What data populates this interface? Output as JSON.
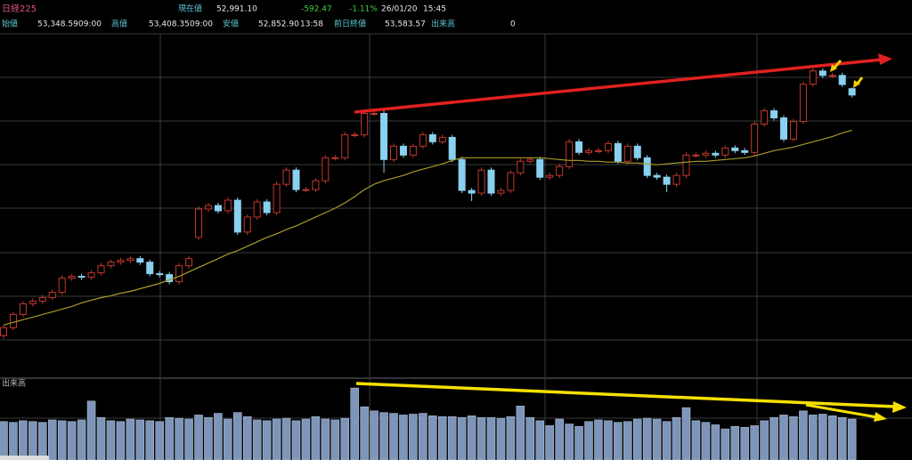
{
  "header": {
    "row1": [
      "日経225",
      "現在値",
      "52,991.10",
      "-592.47",
      "-1.11%",
      "26/01/20",
      "15:45"
    ],
    "row2": [
      "始値",
      "53,348.59",
      "09:00",
      "高値",
      "53,408.35",
      "09:00",
      "安値",
      "52,852.90",
      "13:58",
      "前日終値",
      "53,583.57",
      "出来高",
      "0"
    ]
  },
  "chart_data": {
    "type": "candlestick",
    "ylim": [
      37000,
      56600
    ],
    "up_color": "#c0392b",
    "down_color": "#8ad0ef",
    "ohlc": [
      [
        39400,
        40000,
        39250,
        39850
      ],
      [
        39850,
        40750,
        39700,
        40600
      ],
      [
        40600,
        41350,
        40450,
        41200
      ],
      [
        41200,
        41500,
        41050,
        41350
      ],
      [
        41350,
        41700,
        41200,
        41550
      ],
      [
        41550,
        42000,
        41400,
        41850
      ],
      [
        41850,
        42800,
        41700,
        42650
      ],
      [
        42650,
        42900,
        42500,
        42750
      ],
      [
        42750,
        42900,
        42550,
        42700
      ],
      [
        42700,
        43100,
        42550,
        42950
      ],
      [
        42950,
        43500,
        42800,
        43350
      ],
      [
        43350,
        43700,
        43200,
        43550
      ],
      [
        43550,
        43800,
        43400,
        43650
      ],
      [
        43650,
        43900,
        43500,
        43750
      ],
      [
        43750,
        43900,
        43400,
        43550
      ],
      [
        43550,
        43700,
        42750,
        42900
      ],
      [
        42900,
        43050,
        42700,
        42850
      ],
      [
        42850,
        43000,
        42300,
        42450
      ],
      [
        42450,
        43500,
        42300,
        43350
      ],
      [
        43350,
        43900,
        43200,
        43750
      ],
      [
        44950,
        46700,
        44800,
        46550
      ],
      [
        46550,
        46900,
        46400,
        46750
      ],
      [
        46750,
        46900,
        46300,
        46450
      ],
      [
        46450,
        47200,
        46300,
        47050
      ],
      [
        47050,
        47200,
        45100,
        45250
      ],
      [
        45250,
        46250,
        45100,
        46100
      ],
      [
        46100,
        47100,
        45950,
        46950
      ],
      [
        46950,
        47100,
        46200,
        46350
      ],
      [
        46350,
        48100,
        46200,
        47950
      ],
      [
        47950,
        48900,
        47800,
        48750
      ],
      [
        48750,
        48900,
        47500,
        47650
      ],
      [
        47650,
        47800,
        47500,
        47650
      ],
      [
        47650,
        48300,
        47500,
        48150
      ],
      [
        48150,
        49600,
        48000,
        49450
      ],
      [
        49450,
        49600,
        49300,
        49450
      ],
      [
        49450,
        50900,
        49300,
        50750
      ],
      [
        50750,
        50900,
        50600,
        50750
      ],
      [
        50750,
        52100,
        50600,
        51950
      ],
      [
        51950,
        52100,
        51800,
        51950
      ],
      [
        51950,
        52100,
        48600,
        49350
      ],
      [
        49350,
        50250,
        49200,
        50100
      ],
      [
        50100,
        50250,
        49450,
        49600
      ],
      [
        49600,
        50250,
        49450,
        50100
      ],
      [
        50100,
        50900,
        49950,
        50750
      ],
      [
        50750,
        50900,
        50200,
        50350
      ],
      [
        50350,
        50750,
        50200,
        50600
      ],
      [
        50600,
        50750,
        49200,
        49350
      ],
      [
        49350,
        49500,
        47450,
        47600
      ],
      [
        47600,
        47750,
        47000,
        47450
      ],
      [
        47450,
        48900,
        47300,
        48750
      ],
      [
        48750,
        48900,
        47300,
        47450
      ],
      [
        47450,
        47750,
        47300,
        47600
      ],
      [
        47600,
        48750,
        47450,
        48600
      ],
      [
        48600,
        49400,
        48450,
        49250
      ],
      [
        49250,
        49500,
        49100,
        49350
      ],
      [
        49350,
        49500,
        48200,
        48350
      ],
      [
        48350,
        48600,
        48200,
        48450
      ],
      [
        48450,
        49100,
        48300,
        48950
      ],
      [
        48950,
        50500,
        48800,
        50350
      ],
      [
        50350,
        50500,
        49600,
        49750
      ],
      [
        49750,
        50000,
        49600,
        49850
      ],
      [
        49850,
        50000,
        49700,
        49850
      ],
      [
        49850,
        50400,
        49700,
        50250
      ],
      [
        50250,
        50400,
        49100,
        49250
      ],
      [
        49250,
        50250,
        49100,
        50100
      ],
      [
        50100,
        50250,
        49300,
        49450
      ],
      [
        49450,
        49600,
        48300,
        48450
      ],
      [
        48450,
        48600,
        48200,
        48350
      ],
      [
        48350,
        48500,
        47500,
        47950
      ],
      [
        47950,
        48600,
        47800,
        48450
      ],
      [
        48450,
        49750,
        48300,
        49600
      ],
      [
        49600,
        49750,
        49450,
        49600
      ],
      [
        49600,
        49850,
        49450,
        49700
      ],
      [
        49700,
        49850,
        49450,
        49600
      ],
      [
        49600,
        50150,
        49450,
        50000
      ],
      [
        50000,
        50150,
        49700,
        49850
      ],
      [
        49850,
        50000,
        49600,
        49750
      ],
      [
        49750,
        51500,
        49600,
        51350
      ],
      [
        51350,
        52250,
        51200,
        52100
      ],
      [
        52100,
        52250,
        51550,
        51700
      ],
      [
        51700,
        51850,
        50350,
        50500
      ],
      [
        50500,
        51650,
        50350,
        51500
      ],
      [
        51500,
        53750,
        51350,
        53600
      ],
      [
        53600,
        54500,
        53450,
        54350
      ],
      [
        54350,
        54500,
        53950,
        54100
      ],
      [
        54100,
        54250,
        53950,
        54100
      ],
      [
        54100,
        54250,
        53450,
        53583.57
      ],
      [
        53348.59,
        53408.35,
        52852.9,
        52991.1
      ]
    ],
    "ma": {
      "color": "#a89a2a",
      "values": [
        40000,
        40150,
        40300,
        40450,
        40600,
        40750,
        40900,
        41050,
        41250,
        41400,
        41550,
        41650,
        41800,
        41900,
        42050,
        42200,
        42350,
        42550,
        42750,
        43000,
        43250,
        43500,
        43750,
        44000,
        44200,
        44450,
        44700,
        44950,
        45150,
        45400,
        45600,
        45850,
        46100,
        46350,
        46600,
        46900,
        47250,
        47650,
        47950,
        48150,
        48300,
        48450,
        48650,
        48800,
        48950,
        49100,
        49300,
        49450,
        49450,
        49450,
        49450,
        49450,
        49450,
        49450,
        49450,
        49450,
        49400,
        49350,
        49300,
        49300,
        49250,
        49250,
        49200,
        49200,
        49150,
        49150,
        49100,
        49050,
        49100,
        49150,
        49200,
        49250,
        49250,
        49300,
        49350,
        49400,
        49450,
        49550,
        49700,
        49850,
        49950,
        50050,
        50200,
        50350,
        50500,
        50650,
        50850,
        51000
      ]
    },
    "volume": {
      "label": "出来高",
      "color": "#7d95b8",
      "ylim": [
        0,
        100
      ],
      "values": [
        47,
        46,
        48,
        47,
        46,
        49,
        48,
        47,
        49,
        72,
        52,
        48,
        47,
        50,
        49,
        48,
        47,
        52,
        51,
        50,
        55,
        52,
        57,
        50,
        58,
        53,
        49,
        48,
        50,
        51,
        48,
        50,
        53,
        50,
        49,
        51,
        88,
        65,
        60,
        58,
        57,
        55,
        56,
        57,
        54,
        53,
        53,
        52,
        54,
        52,
        52,
        51,
        53,
        66,
        52,
        48,
        42,
        50,
        44,
        41,
        47,
        49,
        48,
        46,
        47,
        50,
        51,
        50,
        47,
        52,
        64,
        48,
        46,
        43,
        38,
        41,
        40,
        42,
        48,
        52,
        55,
        53,
        60,
        55,
        56,
        54,
        52,
        50
      ]
    }
  }
}
